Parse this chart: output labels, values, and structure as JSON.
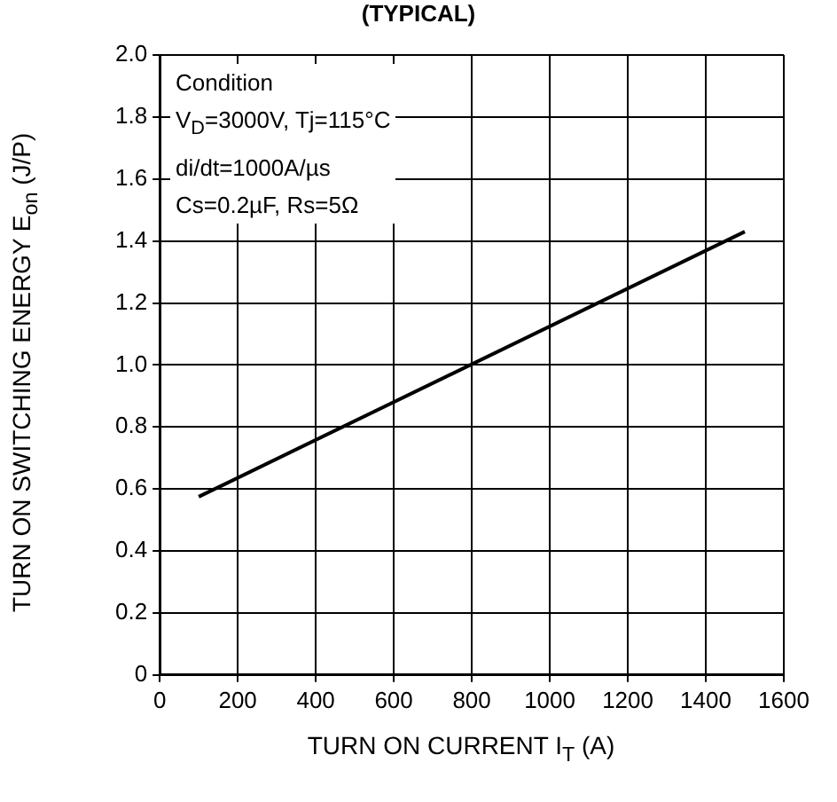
{
  "chart_data": {
    "type": "line",
    "title": "(TYPICAL)",
    "xlabel": "TURN ON CURRENT I$_{T}$ (A)",
    "ylabel": "TURN ON SWITCHING ENERGY E$_{on}$ (J/P)",
    "series": [
      {
        "color": "#000000",
        "x": [
          100,
          1500
        ],
        "values": [
          0.575,
          1.43
        ]
      }
    ],
    "xlim": [
      0,
      1600
    ],
    "xticks": [
      0,
      200,
      400,
      600,
      800,
      1000,
      1200,
      1400,
      1600
    ],
    "ylim": [
      0,
      2.0
    ],
    "yticks": [
      0,
      0.2,
      0.4,
      0.6,
      0.8,
      {
        "value": 1.0,
        "label": "1.0"
      },
      1.2,
      1.4,
      1.6,
      1.8,
      {
        "value": 2.0,
        "label": "2.0"
      }
    ],
    "grid": true,
    "legend": false,
    "marker": "none",
    "line_style": "solid",
    "annotations": [
      "Condition",
      "V$_{D}$=3000V, Tj=115°C",
      "di/dt=1000A/µs",
      "Cs=0.2µF, Rs=5Ω"
    ]
  }
}
